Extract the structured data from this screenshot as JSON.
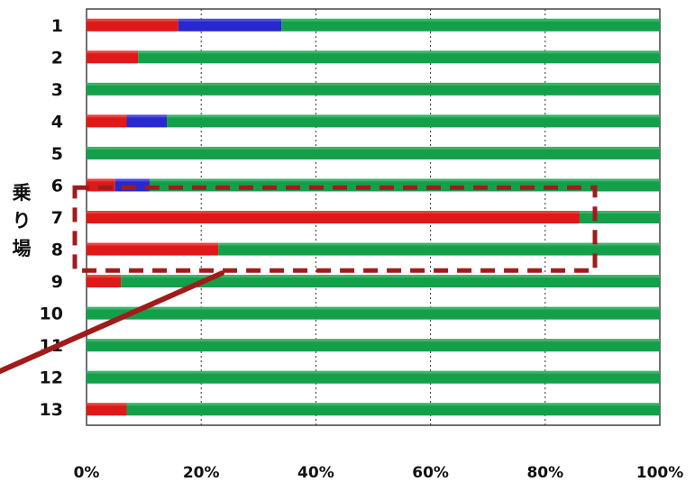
{
  "chart_data": {
    "type": "bar",
    "orientation": "horizontal",
    "stacked": true,
    "normalized_percent": true,
    "categories": [
      "1",
      "2",
      "3",
      "4",
      "5",
      "6",
      "7",
      "8",
      "9",
      "10",
      "11",
      "12",
      "13"
    ],
    "series": [
      {
        "color": "#e01818",
        "values": [
          16,
          9,
          0,
          7,
          0,
          5,
          86,
          23,
          6,
          0,
          0,
          0,
          7
        ]
      },
      {
        "color": "#2828d0",
        "values": [
          18,
          0,
          0,
          7,
          0,
          6,
          0,
          0,
          0,
          0,
          0,
          0,
          0
        ]
      },
      {
        "color": "#13a04a",
        "values": [
          66,
          91,
          100,
          86,
          100,
          89,
          14,
          77,
          94,
          100,
          100,
          100,
          93
        ]
      }
    ],
    "x_ticks": [
      "0%",
      "20%",
      "40%",
      "60%",
      "80%",
      "100%"
    ],
    "xlim": [
      0,
      100
    ],
    "ylabel": "乗り場",
    "grid": true,
    "grid_style": "dotted vertical",
    "annotation": {
      "type": "dashed-rectangle",
      "color": "#a01c1c",
      "highlights_categories": [
        "7",
        "8"
      ],
      "with_pointer_line": true
    }
  }
}
